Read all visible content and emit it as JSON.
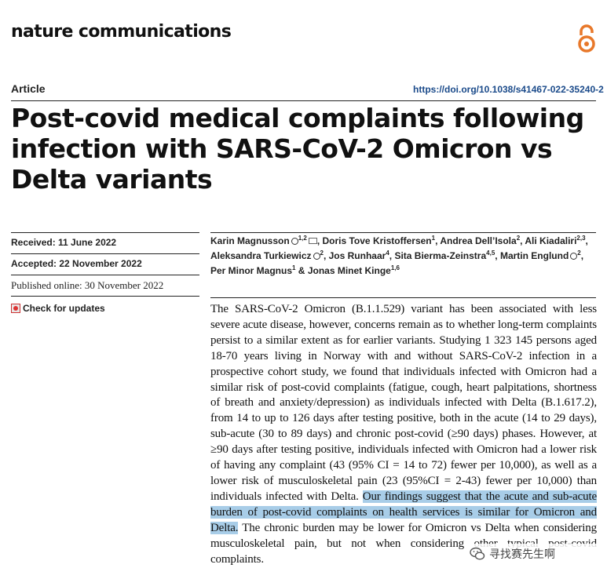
{
  "header": {
    "journal": "nature communications",
    "article_type": "Article",
    "doi": "https://doi.org/10.1038/s41467-022-35240-2"
  },
  "title": "Post-covid medical complaints following infection with SARS-CoV-2 Omicron vs Delta variants",
  "dates": {
    "received": "Received: 11 June 2022",
    "accepted": "Accepted: 22 November 2022",
    "published": "Published online: 30 November 2022",
    "check_updates": "Check for updates"
  },
  "authors": [
    {
      "name": "Karin Magnusson",
      "sup": "1,2",
      "orcid": true,
      "email": true,
      "sep": ", "
    },
    {
      "name": "Doris Tove Kristoffersen",
      "sup": "1",
      "orcid": false,
      "email": false,
      "sep": ", "
    },
    {
      "name": "Andrea Dell’Isola",
      "sup": "2",
      "orcid": false,
      "email": false,
      "sep": ", "
    },
    {
      "name": "Ali Kiadaliri",
      "sup": "2,3",
      "orcid": false,
      "email": false,
      "sep": ", "
    },
    {
      "name": "Aleksandra Turkiewicz",
      "sup": "2",
      "orcid": true,
      "email": false,
      "sep": ", "
    },
    {
      "name": "Jos Runhaar",
      "sup": "4",
      "orcid": false,
      "email": false,
      "sep": ", "
    },
    {
      "name": "Sita Bierma-Zeinstra",
      "sup": "4,5",
      "orcid": false,
      "email": false,
      "sep": ", "
    },
    {
      "name": "Martin Englund",
      "sup": "2",
      "orcid": true,
      "email": false,
      "sep": ", "
    },
    {
      "name": "Per Minor Magnus",
      "sup": "1",
      "orcid": false,
      "email": false,
      "sep": " & "
    },
    {
      "name": "Jonas Minet Kinge",
      "sup": "1,6",
      "orcid": false,
      "email": false,
      "sep": ""
    }
  ],
  "abstract": {
    "part1": "The SARS-CoV-2 Omicron (B.1.1.529) variant has been associated with less severe acute disease, however, concerns remain as to whether long-term complaints persist to a similar extent as for earlier variants. Studying 1 323 145 persons aged 18-70 years living in Norway with and without SARS-CoV-2 infection in a prospective cohort study, we found that individuals infected with Omicron had a similar risk of post-covid complaints (fatigue, cough, heart palpitations, shortness of breath and anxiety/depression) as individuals infected with Delta (B.1.617.2), from 14 to up to 126 days after testing positive, both in the acute (14 to 29 days), sub-acute (30 to 89 days) and chronic post-covid (≥90 days) phases. However, at ≥90 days after testing positive, individuals infected with Omicron had a lower risk of having any complaint (43 (95% CI = 14 to 72) fewer per 10,000), as well as a lower risk of musculoskeletal pain (23 (95%CI = 2-43) fewer per 10,000) than individuals infected with Delta. ",
    "highlight": "Our findings suggest that the acute and sub-acute burden of post-covid complaints on health services is similar for Omicron and Delta.",
    "part2": " The chronic burden may be lower for Omicron vs Delta when considering musculoskeletal pain, but not when considering other typical post-covid complaints."
  },
  "watermark": {
    "text": "寻找赛先生啊"
  },
  "colors": {
    "highlight": "#a8cde8",
    "oa_orange": "#e8782a",
    "doi_blue": "#1a4a8a"
  },
  "icons": [
    "open-access-icon",
    "orcid-icon",
    "email-icon",
    "check-for-updates-icon",
    "wechat-icon"
  ]
}
